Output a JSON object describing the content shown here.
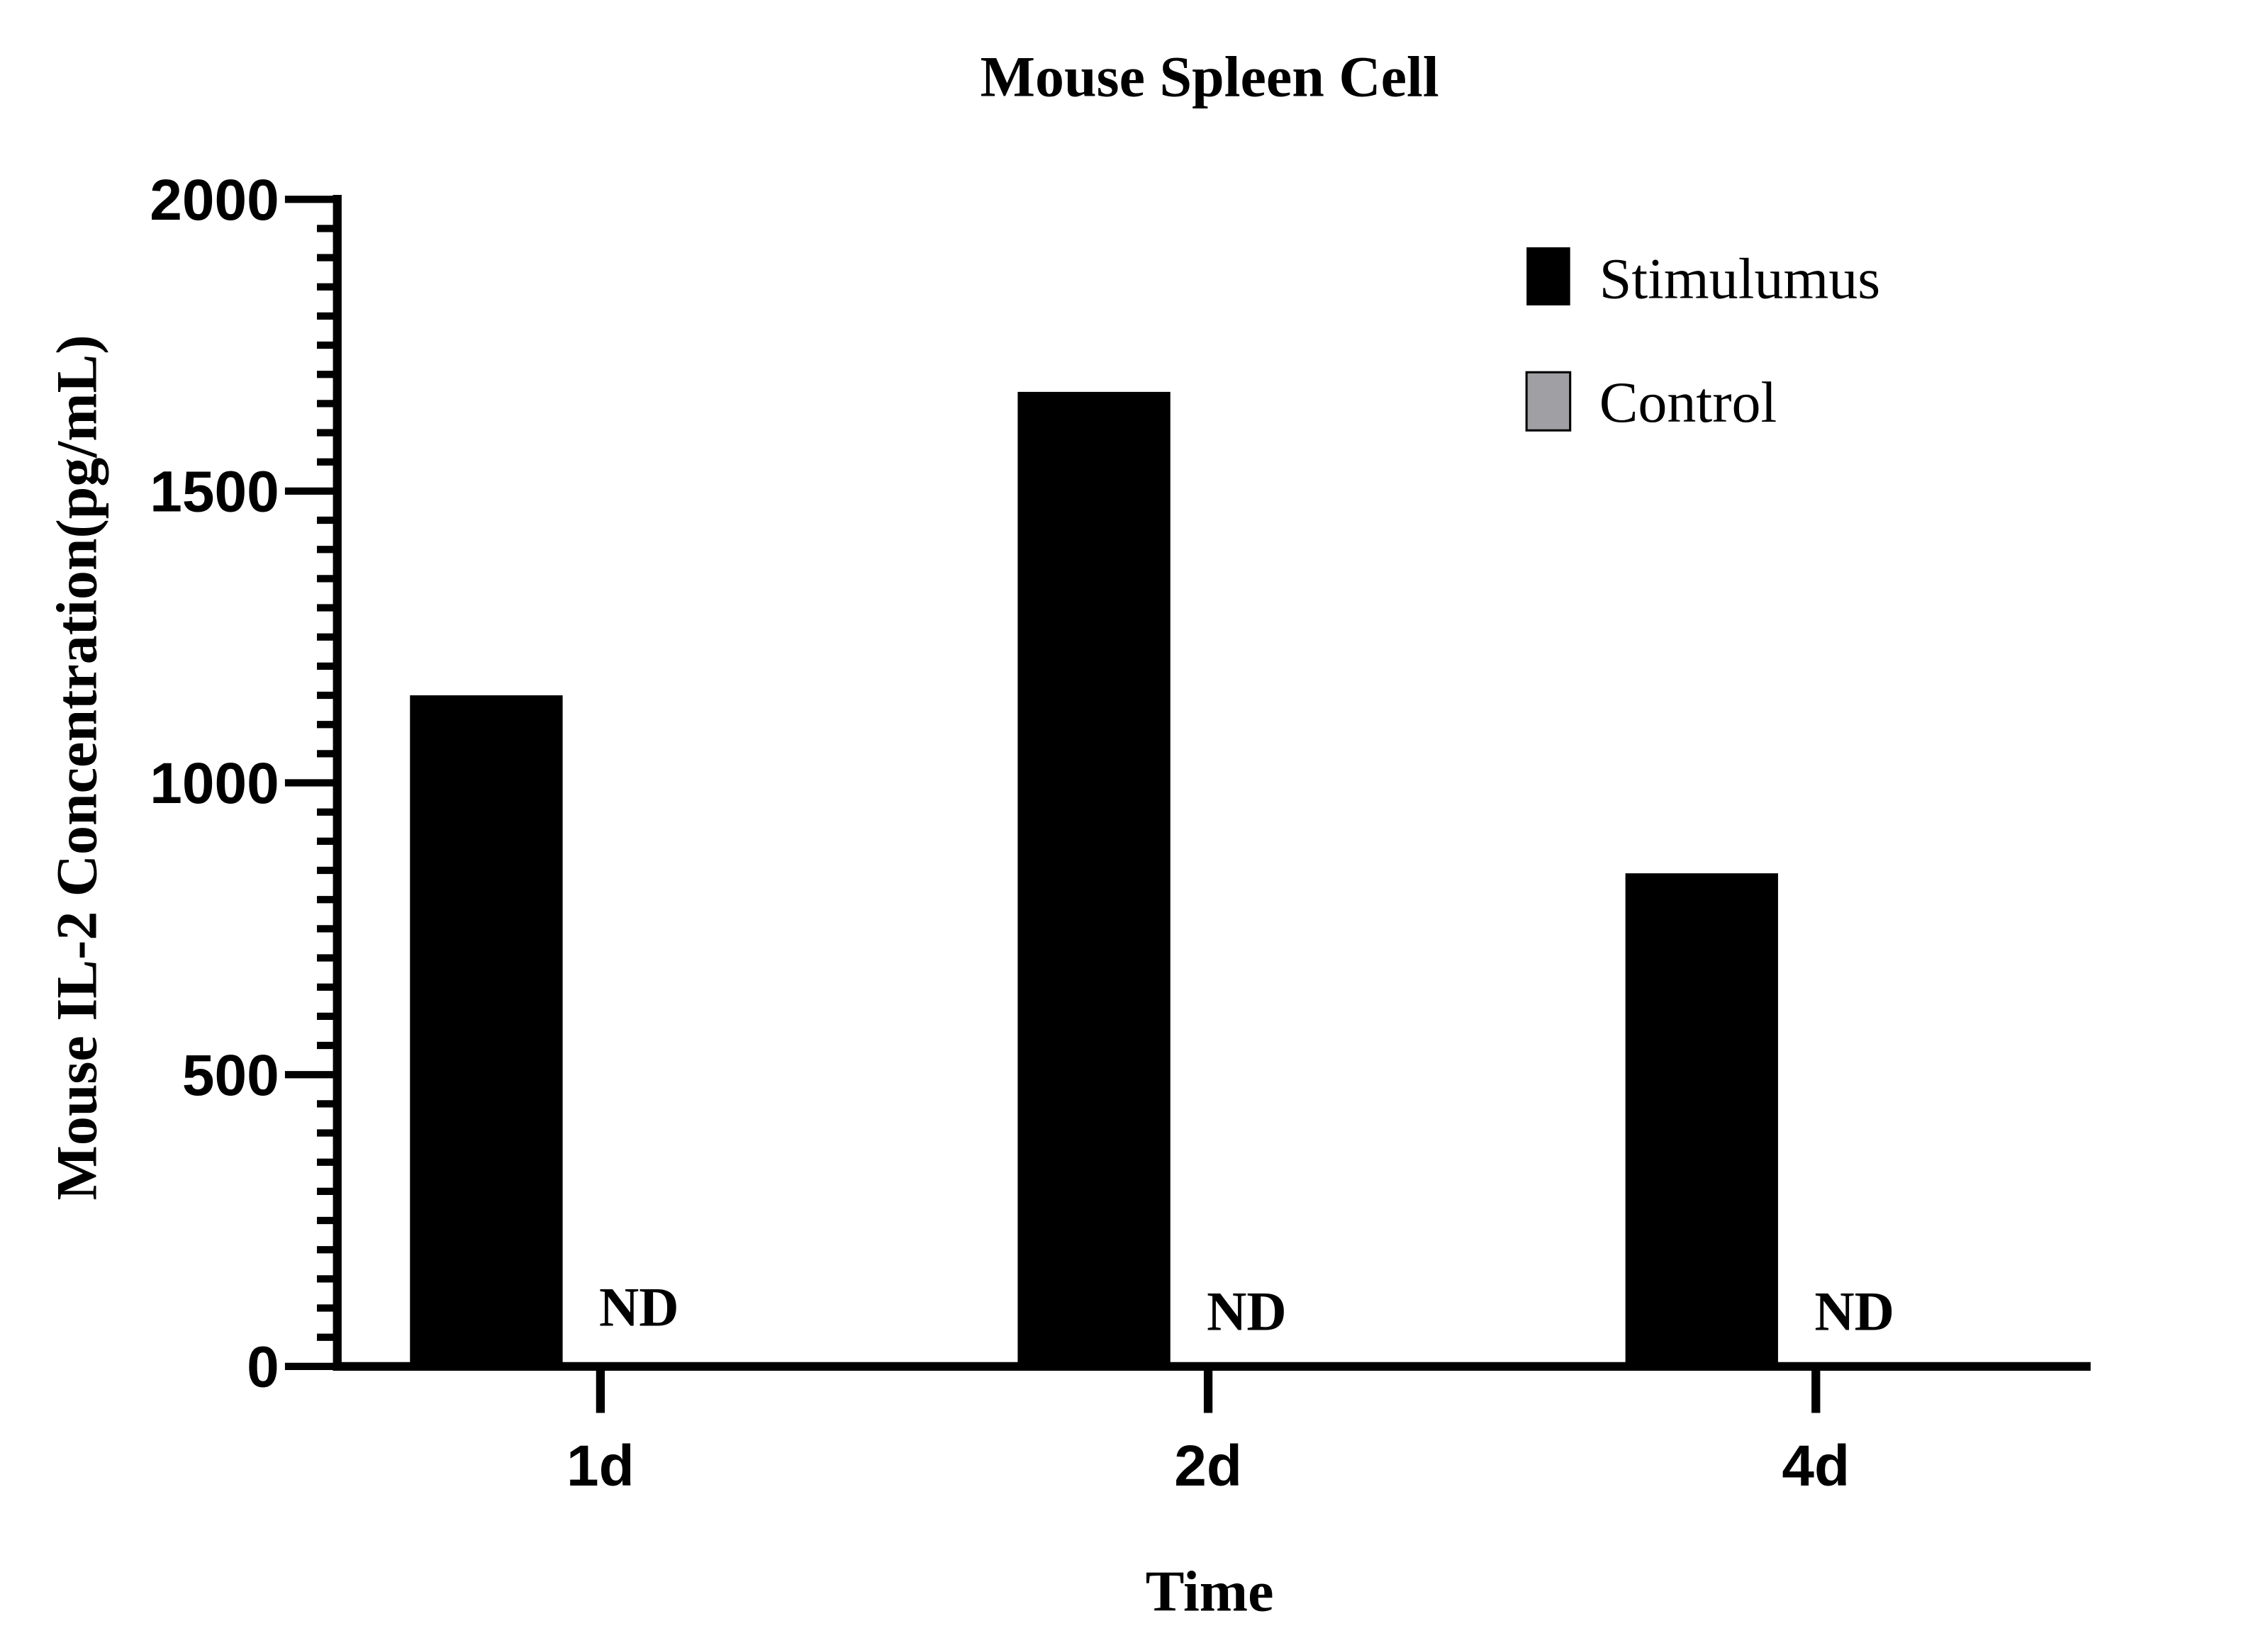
{
  "chart_data": {
    "type": "bar",
    "title": "Mouse Spleen Cell",
    "xlabel": "Time",
    "ylabel": "Mouse IL-2 Concentration(pg/mL)",
    "categories": [
      "1d",
      "2d",
      "4d"
    ],
    "ylim": [
      0,
      2000
    ],
    "yticks": [
      0,
      500,
      1000,
      1500,
      2000
    ],
    "yminor_step": 50,
    "grid": false,
    "legend_position": "top-right",
    "series": [
      {
        "name": "Stimulumus",
        "values": [
          1150,
          1670,
          845
        ],
        "color": "#000000"
      },
      {
        "name": "Control",
        "values": [
          0,
          0,
          0
        ],
        "color": "#a0a0a4",
        "labels": [
          "ND",
          "ND",
          "ND"
        ]
      }
    ]
  }
}
